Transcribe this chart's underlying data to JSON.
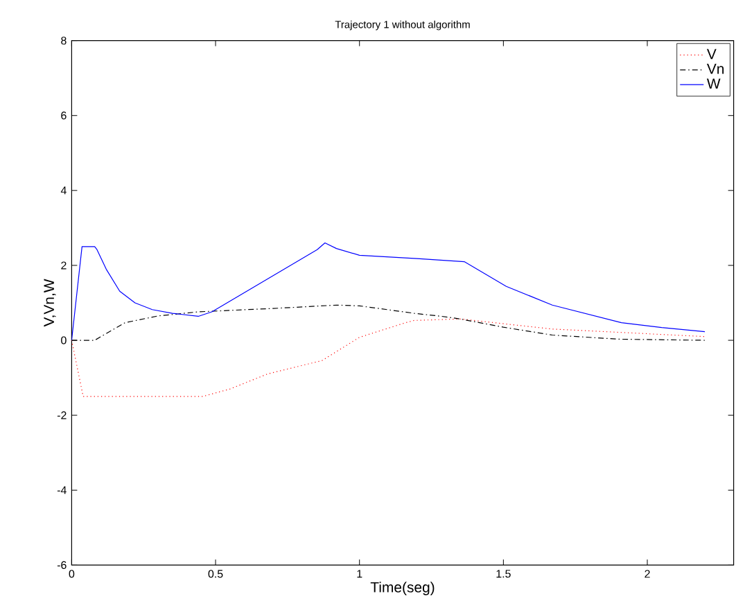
{
  "chart_data": {
    "type": "line",
    "title": "Trajectory 1 without algorithm",
    "xlabel": "Time(seg)",
    "ylabel": "V,Vn,W",
    "xlim": [
      0,
      2.3
    ],
    "ylim": [
      -6,
      8
    ],
    "xticks": [
      0,
      0.5,
      1,
      1.5,
      2
    ],
    "yticks": [
      -6,
      -4,
      -2,
      0,
      2,
      4,
      6,
      8
    ],
    "legend": "top right",
    "grid": false,
    "series": [
      {
        "name": "V",
        "color": "#ff0000",
        "line_style": "dotted",
        "x": [
          0,
          0.04,
          0.2,
          0.455,
          0.55,
          0.68,
          0.87,
          1.0,
          1.16,
          1.19,
          1.35,
          1.67,
          2.2
        ],
        "values": [
          0,
          -1.5,
          -1.5,
          -1.5,
          -1.3,
          -0.9,
          -0.54,
          0.08,
          0.47,
          0.53,
          0.57,
          0.3,
          0.1
        ]
      },
      {
        "name": "Vn",
        "color": "#000000",
        "line_style": "dashdot",
        "x": [
          0,
          0.08,
          0.185,
          0.3,
          0.44,
          0.7,
          0.92,
          1.0,
          1.19,
          1.285,
          1.35,
          1.5,
          1.67,
          1.9,
          2.2
        ],
        "values": [
          0,
          0,
          0.47,
          0.65,
          0.76,
          0.85,
          0.94,
          0.92,
          0.72,
          0.64,
          0.57,
          0.35,
          0.14,
          0.03,
          0
        ]
      },
      {
        "name": "W",
        "color": "#0000ff",
        "line_style": "solid",
        "x": [
          0,
          0.036,
          0.08,
          0.088,
          0.12,
          0.167,
          0.22,
          0.28,
          0.35,
          0.44,
          0.487,
          0.853,
          0.88,
          0.92,
          1.0,
          1.2,
          1.364,
          1.51,
          1.67,
          1.91,
          2.05,
          2.2
        ],
        "values": [
          0,
          2.5,
          2.5,
          2.42,
          1.9,
          1.31,
          1.0,
          0.82,
          0.72,
          0.64,
          0.76,
          2.42,
          2.6,
          2.45,
          2.27,
          2.18,
          2.1,
          1.44,
          0.94,
          0.47,
          0.34,
          0.23
        ]
      }
    ]
  }
}
